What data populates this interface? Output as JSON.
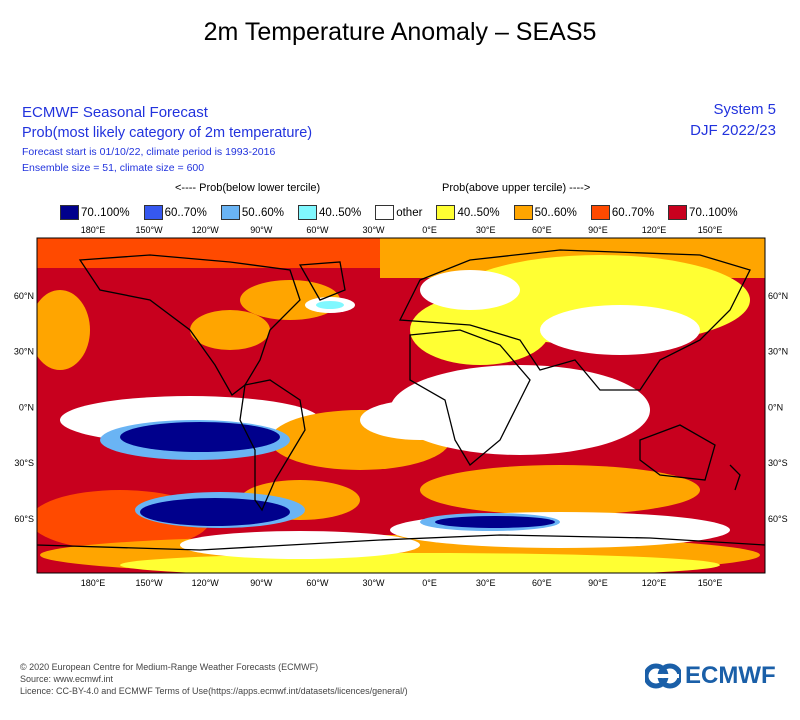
{
  "title": "2m Temperature Anomaly – SEAS5",
  "header": {
    "line1": "ECMWF Seasonal Forecast",
    "line2": "Prob(most likely category of 2m temperature)",
    "line3": "Forecast start is 01/10/22, climate period is 1993-2016",
    "line4": "Ensemble size = 51, climate size = 600",
    "system": "System 5",
    "period": "DJF 2022/23"
  },
  "legend": {
    "below_label": "<---- Prob(below lower tercile)",
    "above_label": "Prob(above upper tercile) ---->",
    "items": [
      {
        "label": "70..100%",
        "color": "#00008c"
      },
      {
        "label": "60..70%",
        "color": "#3658f0"
      },
      {
        "label": "50..60%",
        "color": "#6ab4f4"
      },
      {
        "label": "40..50%",
        "color": "#80f8ff"
      },
      {
        "label": "other",
        "color": "#ffffff"
      },
      {
        "label": "40..50%",
        "color": "#ffff33"
      },
      {
        "label": "50..60%",
        "color": "#ffa500"
      },
      {
        "label": "60..70%",
        "color": "#ff4a00"
      },
      {
        "label": "70..100%",
        "color": "#c8001e"
      }
    ]
  },
  "map": {
    "lon_ticks": [
      "180°E",
      "150°W",
      "120°W",
      "90°W",
      "60°W",
      "30°W",
      "0°E",
      "30°E",
      "60°E",
      "90°E",
      "120°E",
      "150°E"
    ],
    "lat_ticks": [
      "60°N",
      "30°N",
      "0°N",
      "30°S",
      "60°S"
    ]
  },
  "footer": {
    "line1": "© 2020 European Centre for Medium-Range Weather Forecasts (ECMWF)",
    "line2": "Source: www.ecmwf.int",
    "line3": "Licence: CC-BY-4.0 and ECMWF Terms of Use(https://apps.ecmwf.int/datasets/licences/general/)",
    "logo": "ECMWF"
  }
}
